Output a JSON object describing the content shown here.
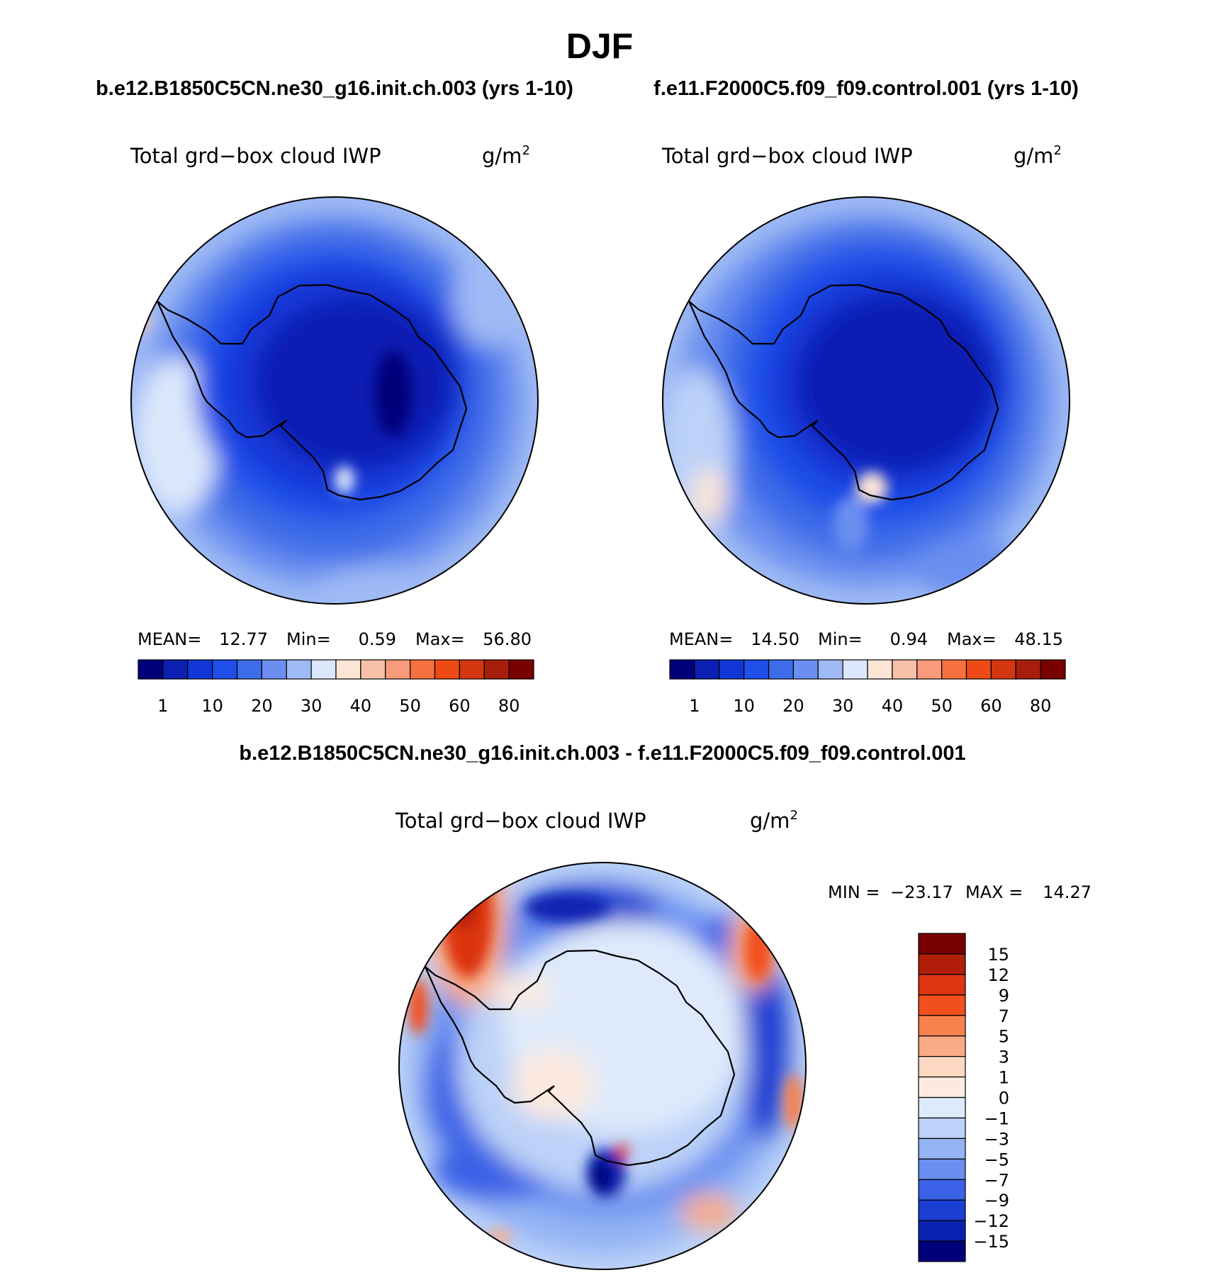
{
  "chart_data": [
    {
      "type": "heatmap",
      "projection": "south-polar-stereographic",
      "case": "b.e12.B1850C5CN.ne30_g16.init.ch.003 (yrs 1-10)",
      "variable": "Total grd−box cloud IWP",
      "units": "g/m",
      "units_exp": "2",
      "stats": {
        "mean_label": "MEAN=",
        "mean": "12.77",
        "min_label": "Min=",
        "min": "0.59",
        "max_label": "Max=",
        "max": "56.80"
      },
      "colorbar": {
        "orientation": "horizontal",
        "levels": [
          "1",
          "10",
          "20",
          "30",
          "40",
          "50",
          "60",
          "80"
        ],
        "colors": [
          "#00007a",
          "#0b1fb2",
          "#1236d6",
          "#1f4ee8",
          "#3d6ce8",
          "#6b8ff0",
          "#9fbaf4",
          "#dbe8fb",
          "#fde5d6",
          "#f8c0a8",
          "#f79b7a",
          "#f5703f",
          "#ee4a16",
          "#d4360f",
          "#a81e0c",
          "#7a0000"
        ]
      }
    },
    {
      "type": "heatmap",
      "projection": "south-polar-stereographic",
      "case": "f.e11.F2000C5.f09_f09.control.001 (yrs 1-10)",
      "variable": "Total grd−box cloud IWP",
      "units": "g/m",
      "units_exp": "2",
      "stats": {
        "mean_label": "MEAN=",
        "mean": "14.50",
        "min_label": "Min=",
        "min": "0.94",
        "max_label": "Max=",
        "max": "48.15"
      },
      "colorbar": {
        "orientation": "horizontal",
        "levels": [
          "1",
          "10",
          "20",
          "30",
          "40",
          "50",
          "60",
          "80"
        ],
        "colors": [
          "#00007a",
          "#0b1fb2",
          "#1236d6",
          "#1f4ee8",
          "#3d6ce8",
          "#6b8ff0",
          "#9fbaf4",
          "#dbe8fb",
          "#fde5d6",
          "#f8c0a8",
          "#f79b7a",
          "#f5703f",
          "#ee4a16",
          "#d4360f",
          "#a81e0c",
          "#7a0000"
        ]
      }
    },
    {
      "type": "heatmap",
      "projection": "south-polar-stereographic",
      "case": "b.e12.B1850C5CN.ne30_g16.init.ch.003 - f.e11.F2000C5.f09_f09.control.001",
      "variable": "Total grd−box cloud IWP",
      "units": "g/m",
      "units_exp": "2",
      "stats": {
        "min_label": "MIN =",
        "min": "−23.17",
        "max_label": "MAX =",
        "max": "14.27"
      },
      "colorbar": {
        "orientation": "vertical",
        "levels": [
          "15",
          "12",
          "9",
          "7",
          "5",
          "3",
          "1",
          "0",
          "−1",
          "−3",
          "−5",
          "−7",
          "−9",
          "−12",
          "−15"
        ],
        "colors": [
          "#7a0000",
          "#b01e0a",
          "#dc3510",
          "#f24f1e",
          "#f8814c",
          "#f9ab86",
          "#fdd8c2",
          "#fdeadf",
          "#deeafb",
          "#bcd2f8",
          "#93b3f4",
          "#6a8ff0",
          "#3b62e6",
          "#1a3fd2",
          "#0b22b0",
          "#00007a"
        ]
      }
    }
  ],
  "figure": {
    "title": "DJF"
  }
}
